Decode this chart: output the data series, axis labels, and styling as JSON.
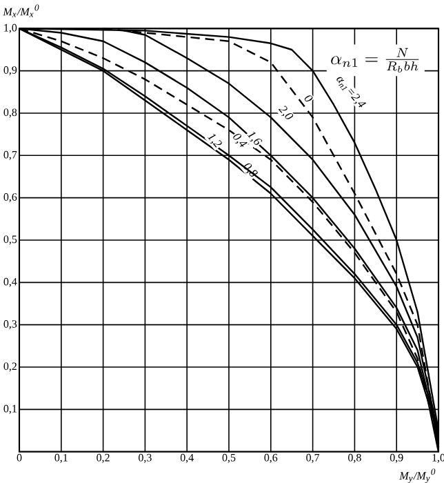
{
  "chart_data": {
    "type": "line",
    "xlabel": "M$_{y}$/M$_{y}$$^{0}$",
    "ylabel": "M$_{x}$/M$_{x}$$^{0}$",
    "annotations": [
      "\\alpha_{n1} = \\frac{N}{R_b bh}"
    ],
    "xlim": [
      0,
      1
    ],
    "ylim": [
      0,
      1
    ],
    "xticks": [
      0,
      {
        "value": 0.1,
        "label": "0,1"
      },
      {
        "value": 0.2,
        "label": "0,2"
      },
      {
        "value": 0.3,
        "label": "0,3"
      },
      {
        "value": 0.4,
        "label": "0,4"
      },
      {
        "value": 0.5,
        "label": "0,5"
      },
      {
        "value": 0.6,
        "label": "0,6"
      },
      {
        "value": 0.7,
        "label": "0,7"
      },
      {
        "value": 0.8,
        "label": "0,8"
      },
      {
        "value": 0.9,
        "label": "0,9"
      },
      {
        "value": 1,
        "label": "1,0"
      }
    ],
    "yticks": [
      {
        "value": 0.1,
        "label": "0,1"
      },
      {
        "value": 0.2,
        "label": "0,2"
      },
      {
        "value": 0.3,
        "label": "0,3"
      },
      {
        "value": 0.4,
        "label": "0,4"
      },
      {
        "value": 0.5,
        "label": "0,5"
      },
      {
        "value": 0.6,
        "label": "0,6"
      },
      {
        "value": 0.7,
        "label": "0,7"
      },
      {
        "value": 0.8,
        "label": "0,8"
      },
      {
        "value": 0.9,
        "label": "0,9"
      },
      {
        "value": 1,
        "label": "1,0"
      }
    ],
    "grid": true,
    "series": [
      {
        "name": "0,8",
        "color": "#000000",
        "line_style": "solid",
        "x": [
          0,
          0.1,
          0.2,
          0.3,
          0.4,
          0.5,
          0.6,
          0.7,
          0.8,
          0.9,
          0.95,
          0.975,
          1
        ],
        "values": [
          1,
          0.95,
          0.9,
          0.83,
          0.76,
          0.69,
          0.61,
          0.51,
          0.41,
          0.29,
          0.2,
          0.12,
          0
        ]
      },
      {
        "name": "1,2",
        "color": "#000000",
        "line_style": "solid",
        "x": [
          0,
          0.1,
          0.2,
          0.3,
          0.4,
          0.5,
          0.6,
          0.7,
          0.8,
          0.9,
          0.95,
          0.98,
          1
        ],
        "values": [
          1,
          0.955,
          0.905,
          0.84,
          0.77,
          0.7,
          0.625,
          0.525,
          0.42,
          0.3,
          0.21,
          0.12,
          0.01
        ]
      },
      {
        "name": "0,4",
        "color": "#000000",
        "line_style": "dashed",
        "x": [
          0,
          0.1,
          0.2,
          0.3,
          0.4,
          0.5,
          0.6,
          0.7,
          0.8,
          0.9,
          0.95,
          1
        ],
        "values": [
          1,
          0.97,
          0.93,
          0.88,
          0.82,
          0.76,
          0.69,
          0.59,
          0.47,
          0.33,
          0.22,
          0.02
        ]
      },
      {
        "name": "1,6",
        "color": "#000000",
        "line_style": "solid",
        "x": [
          0,
          0.1,
          0.2,
          0.3,
          0.4,
          0.5,
          0.6,
          0.7,
          0.8,
          0.9,
          0.95,
          1
        ],
        "values": [
          1,
          0.99,
          0.97,
          0.92,
          0.86,
          0.79,
          0.7,
          0.6,
          0.48,
          0.34,
          0.24,
          0.03
        ]
      },
      {
        "name": "2,0",
        "color": "#000000",
        "line_style": "solid",
        "x": [
          0.25,
          0.3,
          0.4,
          0.5,
          0.6,
          0.7,
          0.8,
          0.9,
          0.95,
          1
        ],
        "values": [
          0.995,
          0.985,
          0.93,
          0.87,
          0.79,
          0.69,
          0.56,
          0.39,
          0.27,
          0.04
        ]
      },
      {
        "name": "0",
        "color": "#000000",
        "line_style": "dashed",
        "x": [
          0.2,
          0.3,
          0.5,
          0.6,
          0.7,
          0.8,
          0.9,
          0.95,
          1
        ],
        "values": [
          1,
          0.99,
          0.97,
          0.92,
          0.79,
          0.61,
          0.42,
          0.3,
          0.02
        ]
      },
      {
        "name": "α$_{n1}$=2,4",
        "color": "#000000",
        "line_style": "solid",
        "x": [
          0,
          0.3,
          0.5,
          0.6,
          0.65,
          0.7,
          0.75,
          0.8,
          0.85,
          0.9,
          0.95,
          1
        ],
        "values": [
          1,
          0.995,
          0.98,
          0.965,
          0.95,
          0.9,
          0.82,
          0.73,
          0.62,
          0.5,
          0.33,
          0.05
        ]
      }
    ]
  }
}
